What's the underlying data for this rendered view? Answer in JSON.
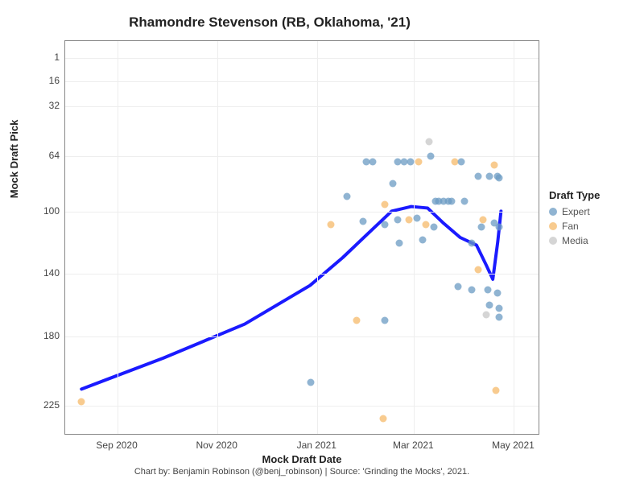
{
  "chart": {
    "type": "scatter",
    "title": "Rhamondre Stevenson (RB, Oklahoma, '21)",
    "xlabel": "Mock Draft Date",
    "ylabel": "Mock Draft Pick",
    "caption": "Chart by: Benjamin Robinson (@benj_robinson) | Source: 'Grinding the Mocks', 2021.",
    "background_color": "#ffffff",
    "grid_color": "#eeeeee",
    "plot_border_color": "#888888",
    "title_fontsize": 17,
    "label_fontsize": 13,
    "tick_fontsize": 12,
    "caption_fontsize": 11,
    "x_range_days": [
      0,
      290
    ],
    "y_range": [
      244,
      -10
    ],
    "y_ticks": [
      1,
      16,
      32,
      64,
      100,
      140,
      180,
      225
    ],
    "x_ticks": [
      {
        "day": 32,
        "label": "Sep 2020"
      },
      {
        "day": 93,
        "label": "Nov 2020"
      },
      {
        "day": 154,
        "label": "Jan 2021"
      },
      {
        "day": 213,
        "label": "Mar 2021"
      },
      {
        "day": 274,
        "label": "May 2021"
      }
    ],
    "legend": {
      "title": "Draft Type",
      "items": [
        {
          "label": "Expert",
          "color": "#6b9bc3",
          "opacity": 0.75
        },
        {
          "label": "Fan",
          "color": "#f5b969",
          "opacity": 0.75
        },
        {
          "label": "Media",
          "color": "#c7c7c7",
          "opacity": 0.75
        }
      ]
    },
    "point_radius": 4.5,
    "point_opacity": 0.75,
    "series_colors": {
      "Expert": "#6b9bc3",
      "Fan": "#f5b969",
      "Media": "#c7c7c7"
    },
    "points": [
      {
        "day": 10,
        "pick": 222,
        "type": "Fan"
      },
      {
        "day": 150,
        "pick": 210,
        "type": "Expert"
      },
      {
        "day": 162,
        "pick": 108,
        "type": "Fan"
      },
      {
        "day": 172,
        "pick": 90,
        "type": "Expert"
      },
      {
        "day": 178,
        "pick": 170,
        "type": "Fan"
      },
      {
        "day": 182,
        "pick": 106,
        "type": "Expert"
      },
      {
        "day": 184,
        "pick": 68,
        "type": "Expert"
      },
      {
        "day": 188,
        "pick": 68,
        "type": "Expert"
      },
      {
        "day": 194,
        "pick": 233,
        "type": "Fan"
      },
      {
        "day": 195,
        "pick": 170,
        "type": "Expert"
      },
      {
        "day": 195,
        "pick": 108,
        "type": "Expert"
      },
      {
        "day": 195,
        "pick": 95,
        "type": "Fan"
      },
      {
        "day": 200,
        "pick": 82,
        "type": "Expert"
      },
      {
        "day": 203,
        "pick": 68,
        "type": "Expert"
      },
      {
        "day": 203,
        "pick": 105,
        "type": "Expert"
      },
      {
        "day": 204,
        "pick": 120,
        "type": "Expert"
      },
      {
        "day": 207,
        "pick": 68,
        "type": "Expert"
      },
      {
        "day": 210,
        "pick": 105,
        "type": "Fan"
      },
      {
        "day": 211,
        "pick": 68,
        "type": "Expert"
      },
      {
        "day": 215,
        "pick": 104,
        "type": "Expert"
      },
      {
        "day": 216,
        "pick": 68,
        "type": "Fan"
      },
      {
        "day": 218,
        "pick": 118,
        "type": "Expert"
      },
      {
        "day": 220,
        "pick": 108,
        "type": "Fan"
      },
      {
        "day": 222,
        "pick": 55,
        "type": "Media"
      },
      {
        "day": 223,
        "pick": 64,
        "type": "Expert"
      },
      {
        "day": 225,
        "pick": 110,
        "type": "Expert"
      },
      {
        "day": 226,
        "pick": 93,
        "type": "Expert"
      },
      {
        "day": 228,
        "pick": 93,
        "type": "Expert"
      },
      {
        "day": 231,
        "pick": 93,
        "type": "Expert"
      },
      {
        "day": 234,
        "pick": 93,
        "type": "Expert"
      },
      {
        "day": 236,
        "pick": 93,
        "type": "Expert"
      },
      {
        "day": 238,
        "pick": 68,
        "type": "Fan"
      },
      {
        "day": 240,
        "pick": 148,
        "type": "Expert"
      },
      {
        "day": 242,
        "pick": 68,
        "type": "Expert"
      },
      {
        "day": 244,
        "pick": 93,
        "type": "Expert"
      },
      {
        "day": 248,
        "pick": 150,
        "type": "Expert"
      },
      {
        "day": 248,
        "pick": 120,
        "type": "Expert"
      },
      {
        "day": 252,
        "pick": 77,
        "type": "Expert"
      },
      {
        "day": 252,
        "pick": 137,
        "type": "Fan"
      },
      {
        "day": 254,
        "pick": 110,
        "type": "Expert"
      },
      {
        "day": 255,
        "pick": 105,
        "type": "Fan"
      },
      {
        "day": 257,
        "pick": 166,
        "type": "Media"
      },
      {
        "day": 258,
        "pick": 150,
        "type": "Expert"
      },
      {
        "day": 259,
        "pick": 77,
        "type": "Expert"
      },
      {
        "day": 259,
        "pick": 160,
        "type": "Expert"
      },
      {
        "day": 262,
        "pick": 70,
        "type": "Fan"
      },
      {
        "day": 262,
        "pick": 107,
        "type": "Expert"
      },
      {
        "day": 263,
        "pick": 215,
        "type": "Fan"
      },
      {
        "day": 264,
        "pick": 77,
        "type": "Expert"
      },
      {
        "day": 264,
        "pick": 152,
        "type": "Expert"
      },
      {
        "day": 265,
        "pick": 110,
        "type": "Expert"
      },
      {
        "day": 265,
        "pick": 168,
        "type": "Expert"
      },
      {
        "day": 265,
        "pick": 162,
        "type": "Expert"
      },
      {
        "day": 265,
        "pick": 78,
        "type": "Expert"
      }
    ],
    "trend_line": {
      "color": "#1a1aff",
      "width": 4,
      "points": [
        {
          "day": 10,
          "pick": 215
        },
        {
          "day": 60,
          "pick": 195
        },
        {
          "day": 110,
          "pick": 173
        },
        {
          "day": 150,
          "pick": 148
        },
        {
          "day": 170,
          "pick": 130
        },
        {
          "day": 185,
          "pick": 115
        },
        {
          "day": 200,
          "pick": 100
        },
        {
          "day": 212,
          "pick": 97
        },
        {
          "day": 222,
          "pick": 98
        },
        {
          "day": 232,
          "pick": 108
        },
        {
          "day": 242,
          "pick": 117
        },
        {
          "day": 252,
          "pick": 122
        },
        {
          "day": 258,
          "pick": 135
        },
        {
          "day": 262,
          "pick": 144
        },
        {
          "day": 265,
          "pick": 120
        },
        {
          "day": 267,
          "pick": 100
        }
      ]
    }
  }
}
